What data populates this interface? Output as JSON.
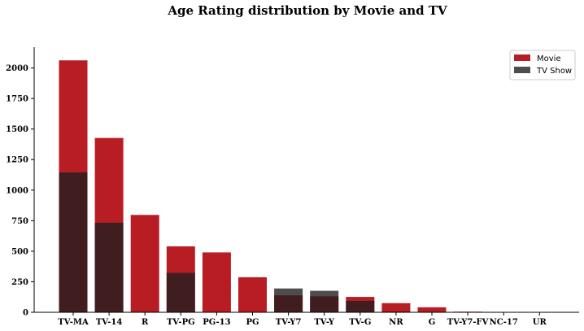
{
  "chart_data": {
    "type": "bar",
    "title": "Age Rating distribution by Movie and TV",
    "xlabel": "",
    "ylabel": "",
    "categories": [
      "TV-MA",
      "TV-14",
      "R",
      "TV-PG",
      "PG-13",
      "PG",
      "TV-Y7",
      "TV-Y",
      "TV-G",
      "NR",
      "G",
      "TV-Y7-FV",
      "NC-17",
      "UR"
    ],
    "series": [
      {
        "name": "Movie",
        "color": "#b81d24",
        "values": [
          2062,
          1427,
          797,
          540,
          490,
          287,
          139,
          131,
          126,
          75,
          41,
          5,
          3,
          3
        ]
      },
      {
        "name": "TV Show",
        "color": "#221f1f",
        "values": [
          1145,
          733,
          2,
          323,
          0,
          0,
          195,
          176,
          94,
          5,
          0,
          1,
          0,
          0
        ]
      }
    ],
    "ylim": [
      0,
      2170
    ],
    "yticks": [
      0,
      250,
      500,
      750,
      1000,
      1250,
      1500,
      1750,
      2000
    ],
    "grid": false,
    "legend_position": "top-right"
  }
}
